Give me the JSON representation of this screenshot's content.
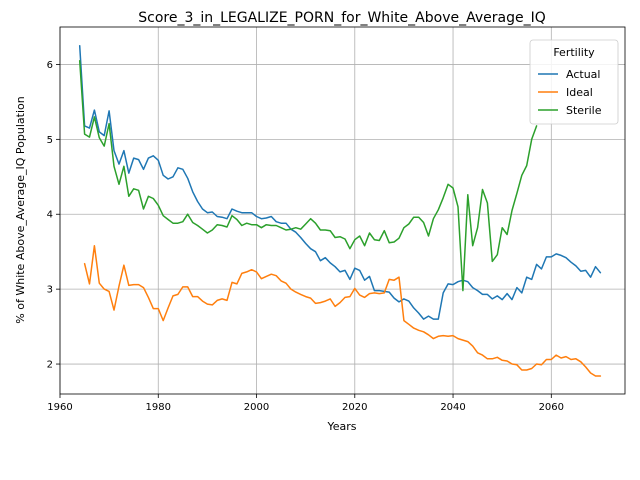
{
  "chart_data": {
    "type": "line",
    "title": "Score_3_in_LEGALIZE_PORN_for_White_Above_Average_IQ",
    "xlabel": "Years",
    "ylabel": "% of White Above_Average_IQ Population",
    "xlim": [
      1960,
      2075
    ],
    "ylim": [
      1.6,
      6.5
    ],
    "xticks": [
      1960,
      1980,
      2000,
      2020,
      2040,
      2060
    ],
    "yticks": [
      2,
      3,
      4,
      5,
      6
    ],
    "grid": true,
    "legend": {
      "title": "Fertility",
      "position": "top-right"
    },
    "series": [
      {
        "name": "Actual",
        "color": "#1f77b4",
        "x": [
          1964,
          1965,
          1966,
          1967,
          1968,
          1969,
          1970,
          1971,
          1972,
          1973,
          1974,
          1975,
          1976,
          1977,
          1978,
          1979,
          1980,
          1981,
          1982,
          1983,
          1984,
          1985,
          1986,
          1987,
          1988,
          1989,
          1990,
          1991,
          1992,
          1993,
          1994,
          1995,
          1996,
          1997,
          1998,
          1999,
          2000,
          2001,
          2002,
          2003,
          2004,
          2005,
          2006,
          2007,
          2008,
          2009,
          2010,
          2011,
          2012,
          2013,
          2014,
          2015,
          2016,
          2017,
          2018,
          2019,
          2020,
          2021,
          2022,
          2023,
          2024,
          2025,
          2026,
          2027,
          2028,
          2029,
          2030,
          2031,
          2032,
          2033,
          2034,
          2035,
          2036,
          2037,
          2038,
          2039,
          2040,
          2041,
          2042,
          2043,
          2044,
          2045,
          2046,
          2047,
          2048,
          2049,
          2050,
          2051,
          2052,
          2053,
          2054,
          2055,
          2056,
          2057,
          2058,
          2059,
          2060,
          2061,
          2062,
          2063,
          2064,
          2065,
          2066,
          2067,
          2068,
          2069,
          2070
        ],
        "values": [
          6.25,
          5.18,
          5.15,
          5.39,
          5.1,
          5.05,
          5.38,
          4.85,
          4.67,
          4.85,
          4.55,
          4.75,
          4.73,
          4.6,
          4.75,
          4.78,
          4.72,
          4.52,
          4.47,
          4.5,
          4.62,
          4.6,
          4.48,
          4.3,
          4.17,
          4.07,
          4.02,
          4.03,
          3.97,
          3.96,
          3.94,
          4.07,
          4.04,
          4.02,
          4.02,
          4.02,
          3.97,
          3.94,
          3.95,
          3.97,
          3.9,
          3.88,
          3.88,
          3.8,
          3.76,
          3.69,
          3.61,
          3.54,
          3.5,
          3.38,
          3.42,
          3.35,
          3.3,
          3.23,
          3.25,
          3.13,
          3.28,
          3.25,
          3.12,
          3.17,
          2.98,
          2.98,
          2.97,
          2.96,
          2.88,
          2.83,
          2.87,
          2.84,
          2.75,
          2.68,
          2.6,
          2.64,
          2.6,
          2.6,
          2.95,
          3.07,
          3.06,
          3.1,
          3.12,
          3.1,
          3.02,
          2.98,
          2.93,
          2.93,
          2.87,
          2.91,
          2.86,
          2.94,
          2.86,
          3.02,
          2.95,
          3.16,
          3.13,
          3.33,
          3.27,
          3.43,
          3.43,
          3.47,
          3.45,
          3.42,
          3.36,
          3.31,
          3.24,
          3.25,
          3.16,
          3.3,
          3.22
        ]
      },
      {
        "name": "Ideal",
        "color": "#ff7f0e",
        "x": [
          1965,
          1966,
          1967,
          1968,
          1969,
          1970,
          1971,
          1972,
          1973,
          1974,
          1975,
          1976,
          1977,
          1978,
          1979,
          1980,
          1981,
          1982,
          1983,
          1984,
          1985,
          1986,
          1987,
          1988,
          1989,
          1990,
          1991,
          1992,
          1993,
          1994,
          1995,
          1996,
          1997,
          1998,
          1999,
          2000,
          2001,
          2002,
          2003,
          2004,
          2005,
          2006,
          2007,
          2008,
          2009,
          2010,
          2011,
          2012,
          2013,
          2014,
          2015,
          2016,
          2017,
          2018,
          2019,
          2020,
          2021,
          2022,
          2023,
          2024,
          2025,
          2026,
          2027,
          2028,
          2029,
          2030,
          2031,
          2032,
          2033,
          2034,
          2035,
          2036,
          2037,
          2038,
          2039,
          2040,
          2041,
          2042,
          2043,
          2044,
          2045,
          2046,
          2047,
          2048,
          2049,
          2050,
          2051,
          2052,
          2053,
          2054,
          2055,
          2056,
          2057,
          2058,
          2059,
          2060,
          2061,
          2062,
          2063,
          2064,
          2065,
          2066,
          2067,
          2068,
          2069,
          2070
        ],
        "values": [
          3.34,
          3.07,
          3.58,
          3.08,
          3.0,
          2.97,
          2.72,
          3.04,
          3.32,
          3.05,
          3.06,
          3.06,
          3.02,
          2.89,
          2.74,
          2.74,
          2.58,
          2.75,
          2.91,
          2.93,
          3.03,
          3.03,
          2.9,
          2.9,
          2.84,
          2.8,
          2.79,
          2.85,
          2.87,
          2.85,
          3.09,
          3.07,
          3.21,
          3.23,
          3.26,
          3.23,
          3.14,
          3.17,
          3.2,
          3.18,
          3.11,
          3.08,
          3.0,
          2.96,
          2.93,
          2.9,
          2.88,
          2.81,
          2.82,
          2.84,
          2.87,
          2.77,
          2.82,
          2.89,
          2.9,
          3.01,
          2.92,
          2.89,
          2.94,
          2.95,
          2.94,
          2.95,
          3.13,
          3.12,
          3.16,
          2.58,
          2.53,
          2.48,
          2.45,
          2.43,
          2.39,
          2.34,
          2.37,
          2.38,
          2.37,
          2.38,
          2.34,
          2.32,
          2.3,
          2.24,
          2.15,
          2.12,
          2.07,
          2.07,
          2.09,
          2.05,
          2.04,
          2.0,
          1.99,
          1.92,
          1.92,
          1.94,
          2.0,
          1.99,
          2.06,
          2.06,
          2.12,
          2.08,
          2.1,
          2.06,
          2.07,
          2.03,
          1.96,
          1.88,
          1.84,
          1.84
        ]
      },
      {
        "name": "Sterile",
        "color": "#2ca02c",
        "x": [
          1964,
          1965,
          1966,
          1967,
          1968,
          1969,
          1970,
          1971,
          1972,
          1973,
          1974,
          1975,
          1976,
          1977,
          1978,
          1979,
          1980,
          1981,
          1982,
          1983,
          1984,
          1985,
          1986,
          1987,
          1988,
          1989,
          1990,
          1991,
          1992,
          1993,
          1994,
          1995,
          1996,
          1997,
          1998,
          1999,
          2000,
          2001,
          2002,
          2003,
          2004,
          2005,
          2006,
          2007,
          2008,
          2009,
          2010,
          2011,
          2012,
          2013,
          2014,
          2015,
          2016,
          2017,
          2018,
          2019,
          2020,
          2021,
          2022,
          2023,
          2024,
          2025,
          2026,
          2027,
          2028,
          2029,
          2030,
          2031,
          2032,
          2033,
          2034,
          2035,
          2036,
          2037,
          2038,
          2039,
          2040,
          2041,
          2042,
          2043,
          2044,
          2045,
          2046,
          2047,
          2048,
          2049,
          2050,
          2051,
          2052,
          2053,
          2054,
          2055,
          2056,
          2057
        ],
        "values": [
          6.05,
          5.07,
          5.03,
          5.3,
          5.02,
          4.91,
          5.21,
          4.64,
          4.4,
          4.64,
          4.24,
          4.34,
          4.32,
          4.07,
          4.24,
          4.21,
          4.12,
          3.98,
          3.93,
          3.88,
          3.88,
          3.9,
          4.0,
          3.89,
          3.85,
          3.8,
          3.75,
          3.79,
          3.86,
          3.85,
          3.83,
          3.98,
          3.93,
          3.85,
          3.88,
          3.86,
          3.86,
          3.82,
          3.86,
          3.85,
          3.85,
          3.82,
          3.79,
          3.8,
          3.82,
          3.8,
          3.87,
          3.94,
          3.88,
          3.79,
          3.79,
          3.78,
          3.69,
          3.7,
          3.67,
          3.54,
          3.66,
          3.71,
          3.58,
          3.75,
          3.66,
          3.65,
          3.78,
          3.62,
          3.63,
          3.68,
          3.82,
          3.87,
          3.96,
          3.96,
          3.89,
          3.71,
          3.94,
          4.06,
          4.22,
          4.4,
          4.35,
          4.1,
          2.98,
          4.26,
          3.58,
          3.82,
          4.33,
          4.15,
          3.37,
          3.46,
          3.82,
          3.73,
          4.05,
          4.28,
          4.52,
          4.65,
          5.0,
          5.18
        ]
      }
    ]
  }
}
